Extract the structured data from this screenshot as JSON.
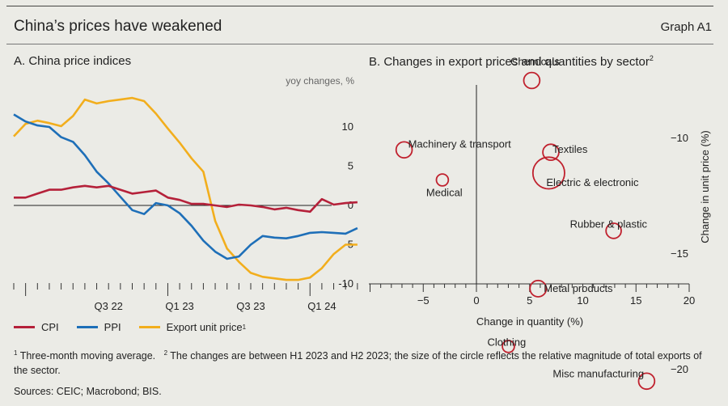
{
  "header": {
    "title": "China’s prices have weakened",
    "graph_label": "Graph A1"
  },
  "panel_a": {
    "title": "A. China price indices",
    "unit": "yoy changes, %"
  },
  "panel_b": {
    "title": "B. Changes in export prices and quantities by sector",
    "title_note": "2"
  },
  "legend": [
    {
      "label": "CPI",
      "note": "",
      "color": "#b5213a"
    },
    {
      "label": "PPI",
      "note": "",
      "color": "#1e6fb8"
    },
    {
      "label": "Export unit price",
      "note": "1",
      "color": "#f2ae1d"
    }
  ],
  "footnotes": {
    "note1_mark": "1",
    "note1": "Three-month moving average.",
    "note2_mark": "2",
    "note2": "The changes are between H1 2023 and H2 2023; the size of the circle reflects the relative magnitude of total exports of the sector."
  },
  "sources": "Sources: CEIC; Macrobond; BIS.",
  "chart_data": [
    {
      "type": "line",
      "title": "A. China price indices",
      "ylabel": "yoy changes, %",
      "ylim": [
        -10,
        14
      ],
      "yticks": [
        -10,
        -5,
        0,
        5,
        10
      ],
      "x_tick_labels": [
        {
          "label": "Q3 22",
          "month": "2022-08"
        },
        {
          "label": "Q1 23",
          "month": "2023-02"
        },
        {
          "label": "Q3 23",
          "month": "2023-08"
        },
        {
          "label": "Q1 24",
          "month": "2024-02"
        }
      ],
      "x": [
        "2021-12",
        "2022-01",
        "2022-02",
        "2022-03",
        "2022-04",
        "2022-05",
        "2022-06",
        "2022-07",
        "2022-08",
        "2022-09",
        "2022-10",
        "2022-11",
        "2022-12",
        "2023-01",
        "2023-02",
        "2023-03",
        "2023-04",
        "2023-05",
        "2023-06",
        "2023-07",
        "2023-08",
        "2023-09",
        "2023-10",
        "2023-11",
        "2023-12",
        "2024-01",
        "2024-02",
        "2024-03",
        "2024-04",
        "2024-05"
      ],
      "series": [
        {
          "name": "CPI",
          "color": "#b5213a",
          "values": [
            1.0,
            1.0,
            1.5,
            2.0,
            2.0,
            2.3,
            2.5,
            2.3,
            2.5,
            2.0,
            1.5,
            1.7,
            1.9,
            1.0,
            0.7,
            0.2,
            0.2,
            0.0,
            -0.2,
            0.1,
            0.0,
            -0.2,
            -0.5,
            -0.3,
            -0.6,
            -0.8,
            0.8,
            0.1,
            0.3,
            0.4
          ]
        },
        {
          "name": "PPI",
          "color": "#1e6fb8",
          "values": [
            11.6,
            10.7,
            10.2,
            10.0,
            8.7,
            8.1,
            6.4,
            4.3,
            2.8,
            1.1,
            -0.6,
            -1.1,
            0.3,
            0.0,
            -1.0,
            -2.6,
            -4.5,
            -5.9,
            -6.8,
            -6.5,
            -5.0,
            -3.9,
            -4.1,
            -4.2,
            -3.9,
            -3.5,
            -3.4,
            -3.5,
            -3.6,
            -2.9
          ]
        },
        {
          "name": "Export unit price",
          "color": "#f2ae1d",
          "values": [
            8.8,
            10.4,
            10.8,
            10.5,
            10.1,
            11.4,
            13.5,
            13.0,
            13.3,
            13.5,
            13.7,
            13.3,
            11.7,
            9.8,
            8.0,
            6.0,
            4.3,
            -2.0,
            -5.5,
            -7.2,
            -8.6,
            -9.1,
            -9.3,
            -9.5,
            -9.5,
            -9.2,
            -8.0,
            -6.2,
            -5.0,
            -5.0
          ]
        }
      ]
    },
    {
      "type": "scatter",
      "title": "B. Changes in export prices and quantities by sector",
      "xlabel": "Change in quantity (%)",
      "ylabel": "Change in unit price (%)",
      "xlim": [
        -10,
        20
      ],
      "ylim": [
        -22.2,
        -5.9
      ],
      "xticks": [
        -5,
        0,
        5,
        10,
        15,
        20
      ],
      "yticks": [
        -20,
        -15,
        -10
      ],
      "points": [
        {
          "label": "Chemicals",
          "x": 5.2,
          "y": -7.5,
          "size": 3
        },
        {
          "label": "Machinery & transport",
          "x": -6.8,
          "y": -10.5,
          "size": 3
        },
        {
          "label": "Medical",
          "x": -3.2,
          "y": -11.8,
          "size": 1
        },
        {
          "label": "Textiles",
          "x": 7.0,
          "y": -10.6,
          "size": 3
        },
        {
          "label": "Electric & electronic",
          "x": 6.8,
          "y": -11.5,
          "size": 10
        },
        {
          "label": "Rubber & plastic",
          "x": 12.9,
          "y": -14.0,
          "size": 2.5
        },
        {
          "label": "Metal products",
          "x": 5.8,
          "y": -16.5,
          "size": 3.2
        },
        {
          "label": "Clothing",
          "x": 3.0,
          "y": -19.0,
          "size": 1
        },
        {
          "label": "Misc manufacturing",
          "x": 16.0,
          "y": -20.5,
          "size": 3
        }
      ]
    }
  ]
}
